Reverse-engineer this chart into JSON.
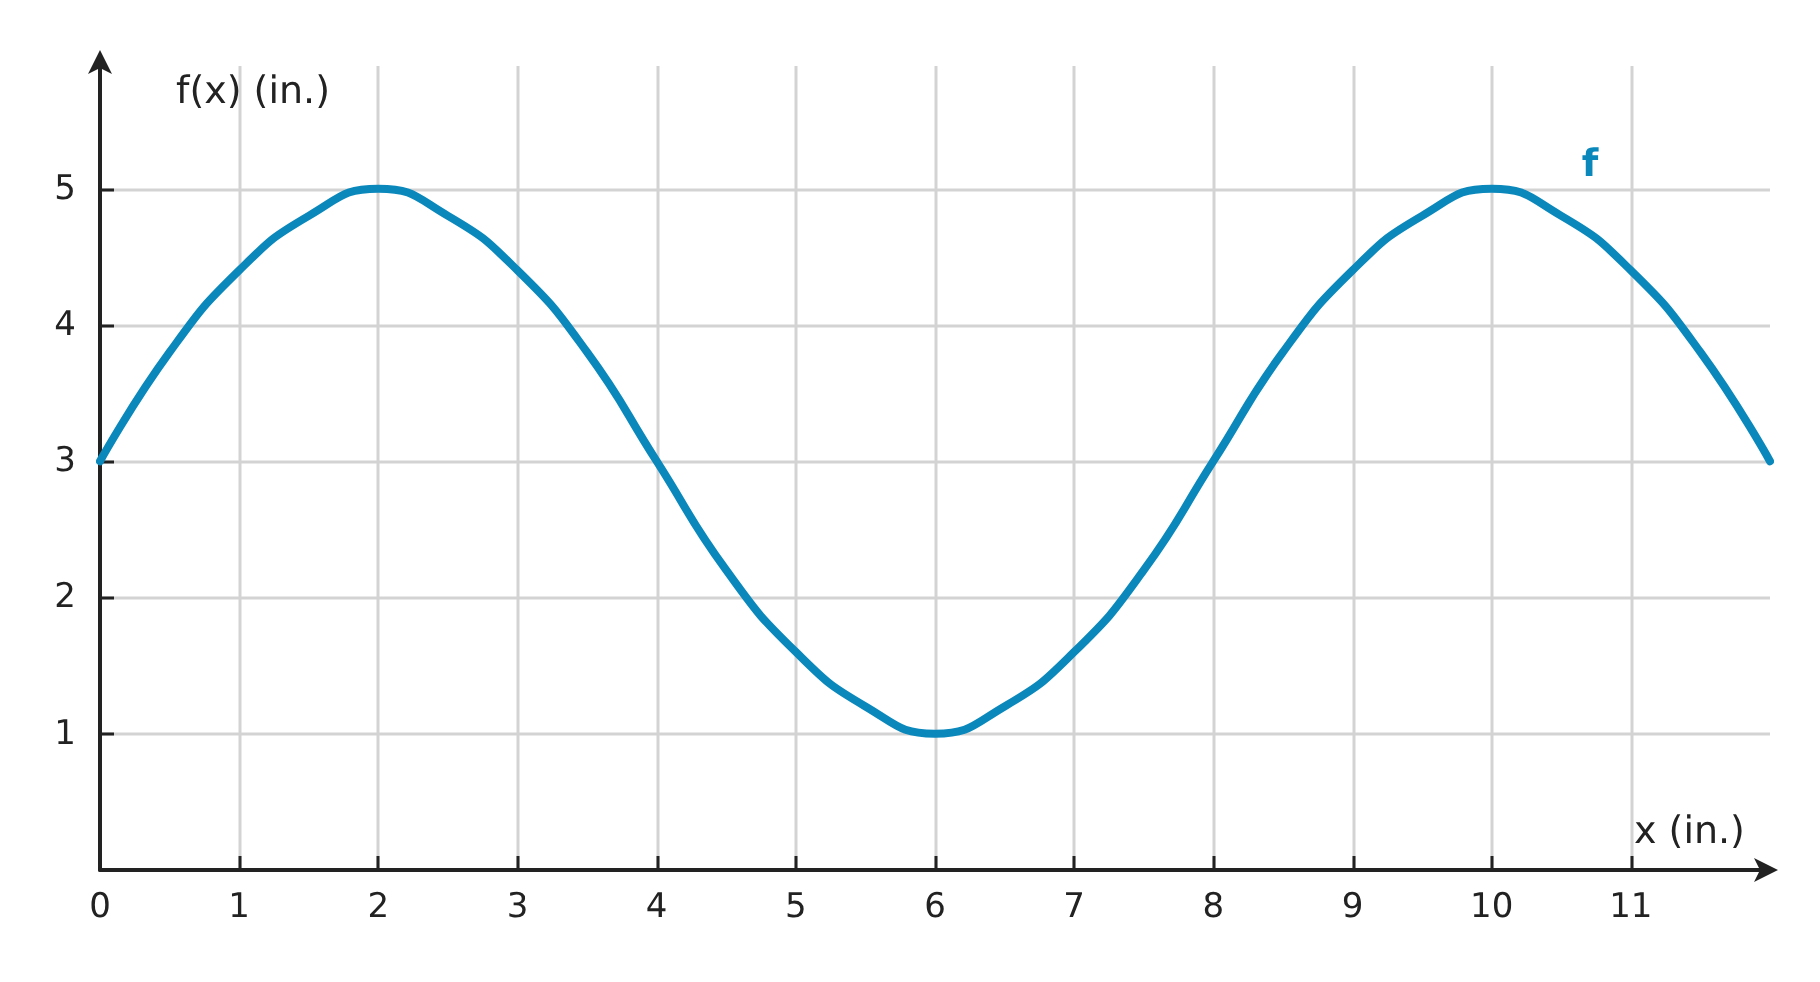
{
  "chart_data": {
    "type": "line",
    "xlabel": "x (in.)",
    "ylabel": "f(x) (in.)",
    "x": [
      0,
      0.5,
      1,
      1.5,
      2,
      2.5,
      3,
      3.5,
      4,
      4.5,
      5,
      5.5,
      6,
      6.5,
      7,
      7.5,
      8,
      8.5,
      9,
      9.5,
      10,
      10.5,
      11,
      11.5,
      12
    ],
    "series": [
      {
        "name": "f",
        "color": "#0a88bc",
        "values": [
          3,
          3.8,
          4.4,
          4.8,
          5,
          4.8,
          4.4,
          3.8,
          3,
          2.2,
          1.6,
          1.2,
          1,
          1.2,
          1.6,
          2.2,
          3,
          3.8,
          4.4,
          4.8,
          5,
          4.8,
          4.4,
          3.8,
          3
        ]
      }
    ],
    "xlim": [
      0,
      12
    ],
    "xticks": [
      0,
      1,
      2,
      3,
      4,
      5,
      6,
      7,
      8,
      9,
      10,
      11
    ],
    "ylim": [
      0,
      5.9
    ],
    "yticks": [
      1,
      2,
      3,
      4,
      5
    ],
    "grid": true,
    "legend": false,
    "marker": "none",
    "line_style": "solid"
  }
}
